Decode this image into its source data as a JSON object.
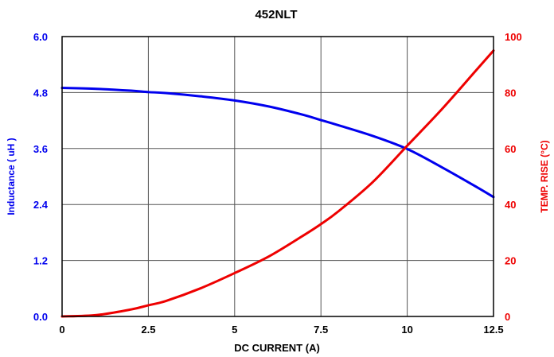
{
  "chart_data": {
    "type": "line",
    "title": "452NLT",
    "xlabel": "DC CURRENT (A)",
    "ylabel_left": "Inductance  ( uH )",
    "ylabel_right": "TEMP. RISE (°C)",
    "xlim": [
      0,
      12.5
    ],
    "ylim_left": [
      0,
      6.0
    ],
    "ylim_right": [
      0,
      100
    ],
    "xticks": [
      "0",
      "2.5",
      "5",
      "7.5",
      "10",
      "12.5"
    ],
    "yticks_left": [
      "0.0",
      "1.2",
      "2.4",
      "3.6",
      "4.8",
      "6.0"
    ],
    "yticks_right": [
      "0",
      "20",
      "40",
      "60",
      "80",
      "100"
    ],
    "grid": true,
    "series": [
      {
        "axis": "left",
        "color": "#0000ee",
        "x": [
          0,
          1,
          2,
          2.5,
          3,
          4,
          5,
          6,
          7,
          7.5,
          8,
          9,
          10,
          11,
          12,
          12.5
        ],
        "y": [
          4.9,
          4.88,
          4.84,
          4.81,
          4.79,
          4.72,
          4.63,
          4.5,
          4.32,
          4.21,
          4.1,
          3.87,
          3.59,
          3.2,
          2.78,
          2.56
        ]
      },
      {
        "axis": "right",
        "color": "#ee0000",
        "x": [
          0,
          1,
          2,
          2.5,
          3,
          4,
          5,
          6,
          7,
          7.5,
          8,
          9,
          10,
          11,
          12,
          12.5
        ],
        "y": [
          0,
          0.5,
          2.5,
          4,
          5.5,
          10,
          15.5,
          21.5,
          29,
          33,
          37.5,
          48,
          61,
          74,
          88,
          95
        ]
      }
    ],
    "colors": {
      "left_axis_text": "#0000ee",
      "right_axis_text": "#ee0000",
      "grid": "#555555",
      "frame": "#000000"
    }
  }
}
